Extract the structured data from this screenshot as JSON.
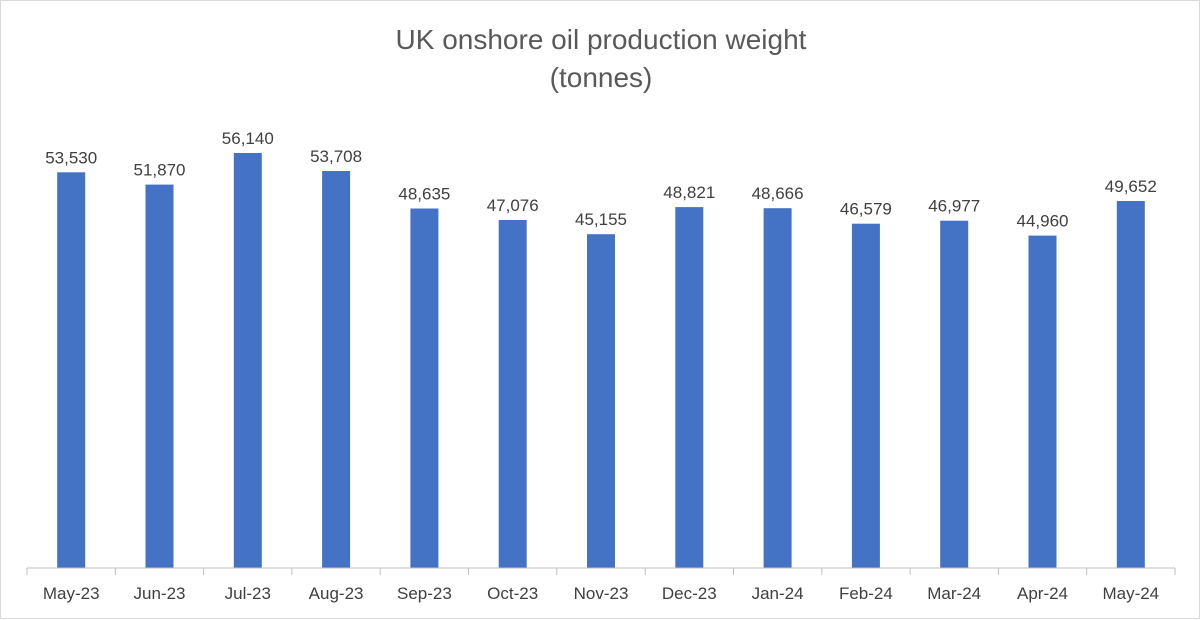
{
  "chart_data": {
    "type": "bar",
    "title": [
      "UK onshore oil production weight",
      "(tonnes)"
    ],
    "categories": [
      "May-23",
      "Jun-23",
      "Jul-23",
      "Aug-23",
      "Sep-23",
      "Oct-23",
      "Nov-23",
      "Dec-23",
      "Jan-24",
      "Feb-24",
      "Mar-24",
      "Apr-24",
      "May-24"
    ],
    "values": [
      53530,
      51870,
      56140,
      53708,
      48635,
      47076,
      45155,
      48821,
      48666,
      46579,
      46977,
      44960,
      49652
    ],
    "value_labels": [
      "53,530",
      "51,870",
      "56,140",
      "53,708",
      "48,635",
      "47,076",
      "45,155",
      "48,821",
      "48,666",
      "46,579",
      "46,977",
      "44,960",
      "49,652"
    ],
    "ylim": [
      0,
      60000
    ],
    "bar_color": "#4472C4",
    "grid": false,
    "legend": "none"
  }
}
